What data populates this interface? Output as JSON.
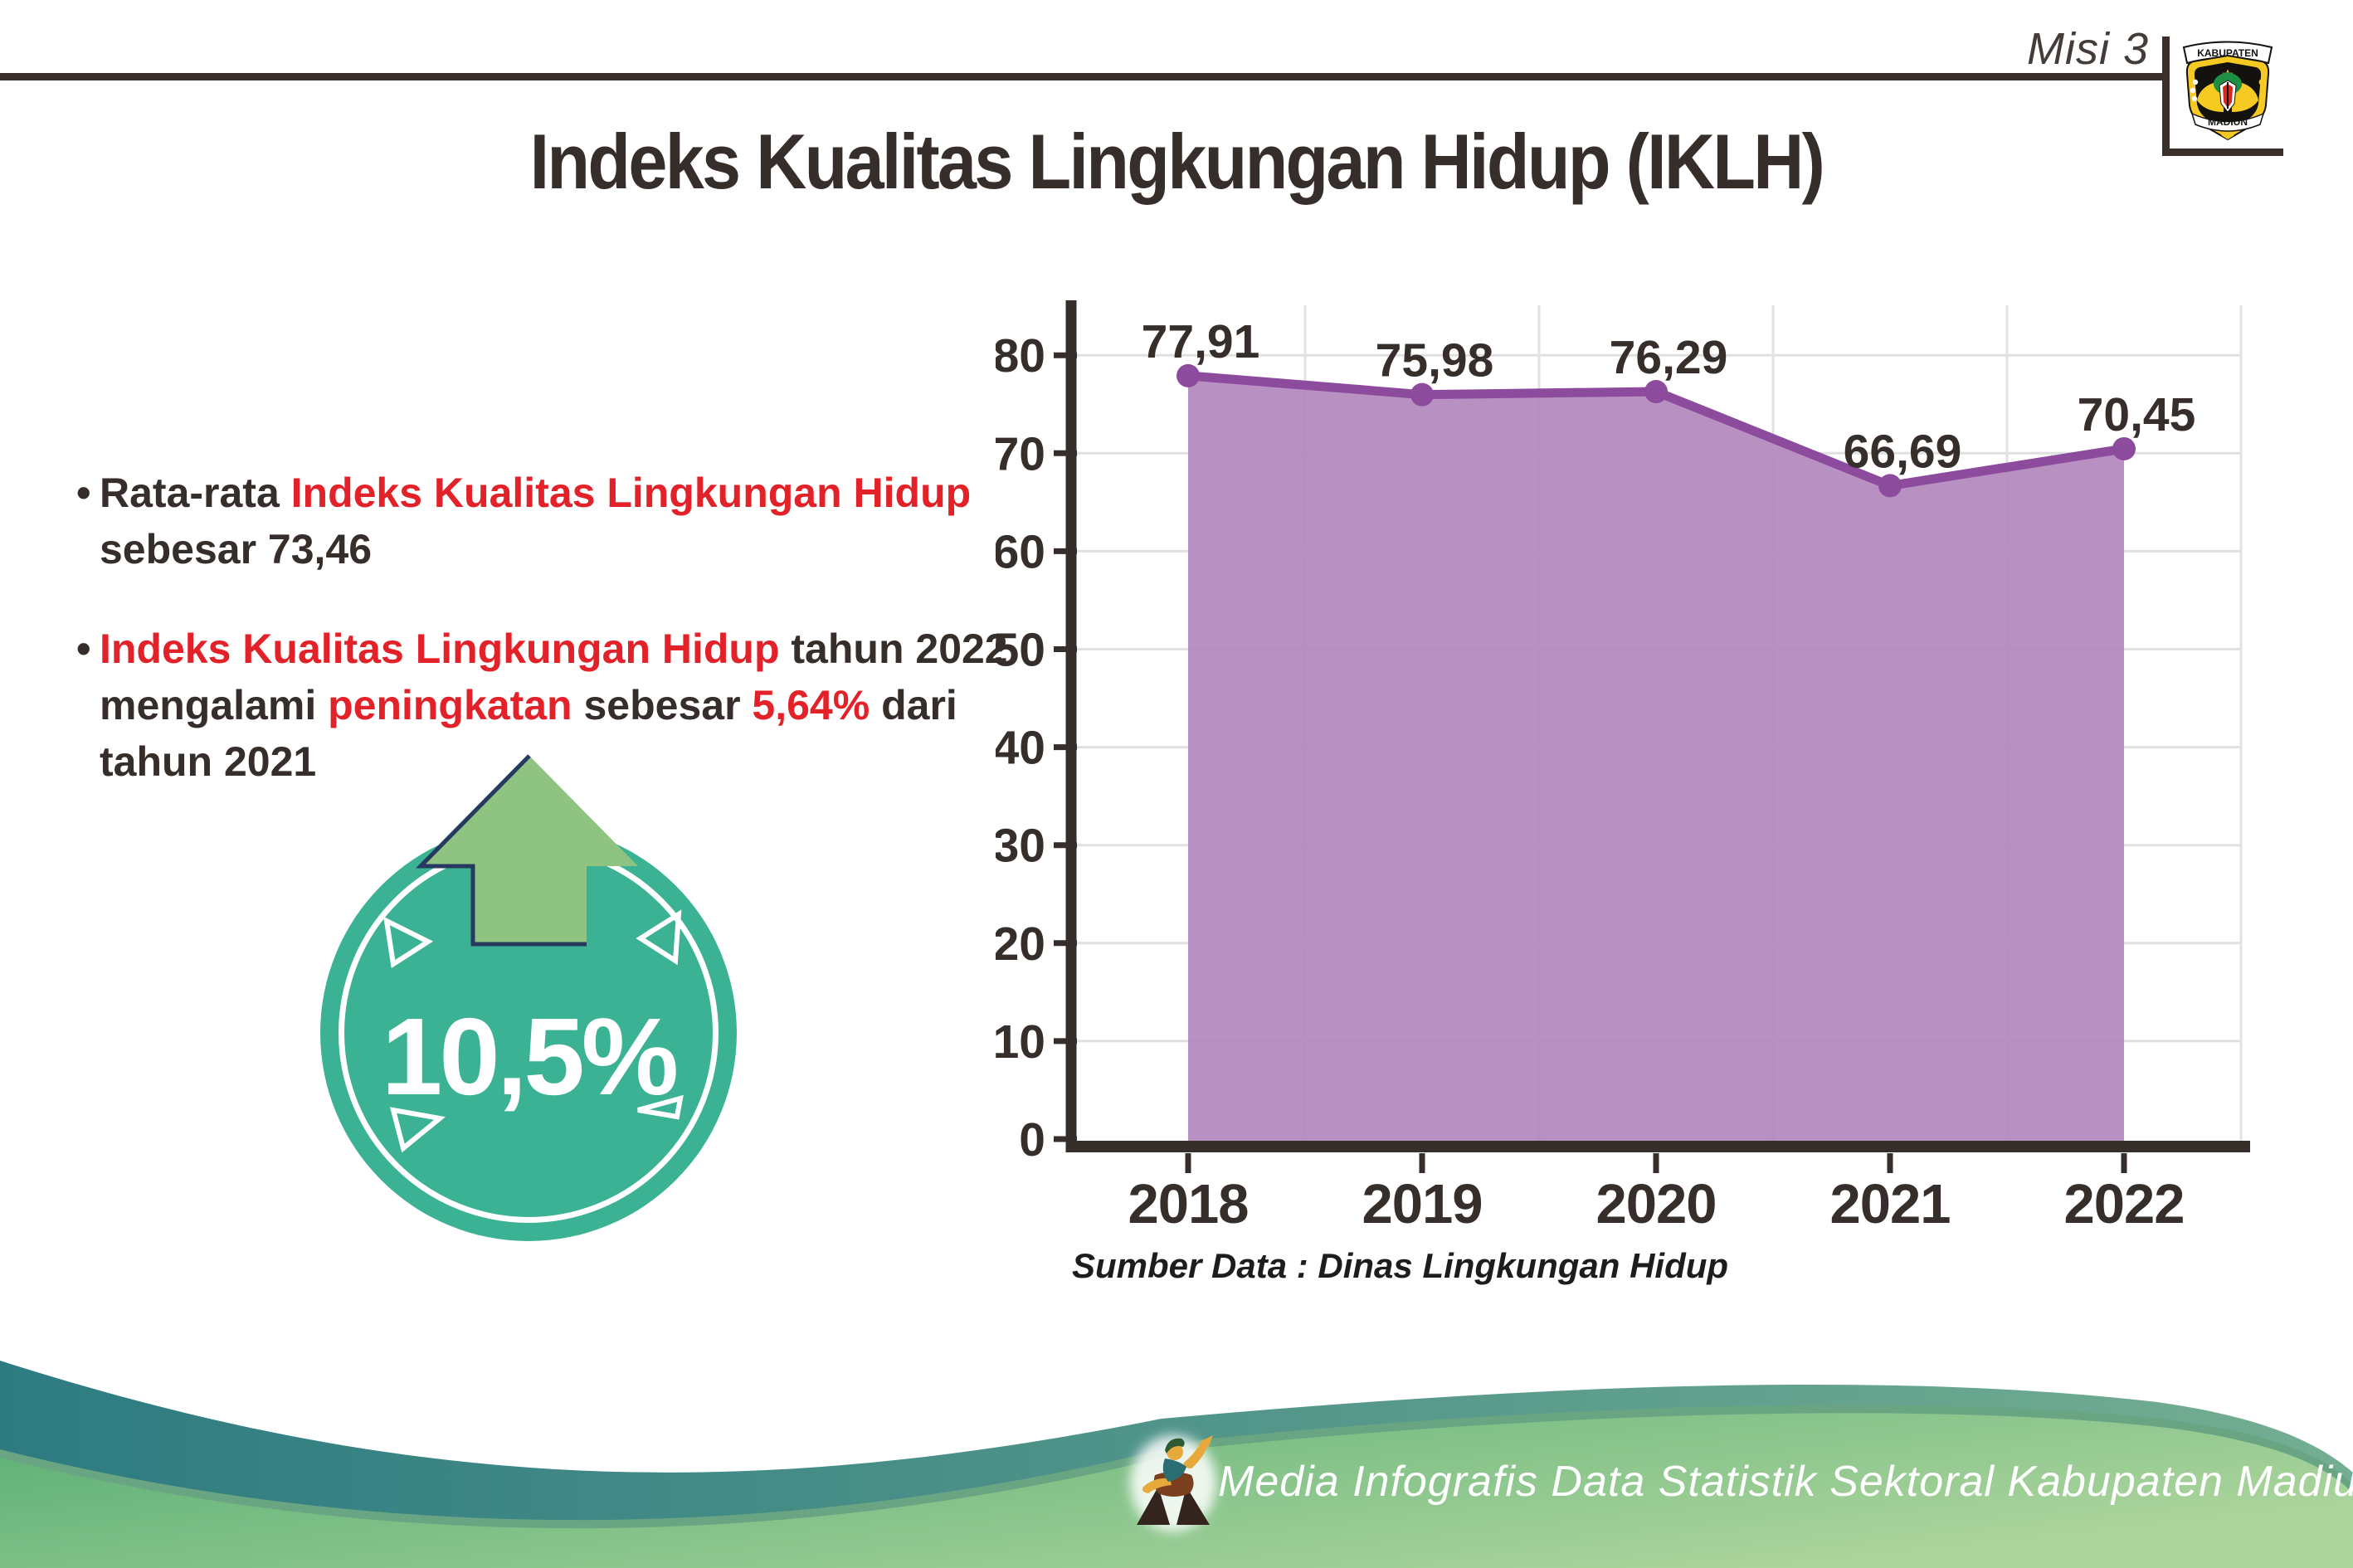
{
  "header": {
    "misi_label": "Misi 3",
    "title": "Indeks Kualitas Lingkungan Hidup (IKLH)",
    "logo": {
      "ribbon_text": "KABUPATEN",
      "band_text": "MADIUN"
    }
  },
  "bullet_marker": "•",
  "bullets": [
    {
      "lines": [
        [
          {
            "t": "Rata-rata ",
            "c": "dark"
          },
          {
            "t": "Indeks Kualitas Lingkungan Hidup",
            "c": "red"
          }
        ],
        [
          {
            "t": "sebesar 73,46",
            "c": "dark"
          }
        ]
      ]
    },
    {
      "lines": [
        [
          {
            "t": "Indeks Kualitas Lingkungan Hidup",
            "c": "red"
          },
          {
            "t": " tahun 2022",
            "c": "dark"
          }
        ],
        [
          {
            "t": "mengalami ",
            "c": "dark"
          },
          {
            "t": "peningkatan",
            "c": "red"
          },
          {
            "t": " sebesar ",
            "c": "dark"
          },
          {
            "t": "5,64%",
            "c": "red"
          },
          {
            "t": " dari",
            "c": "dark"
          }
        ],
        [
          {
            "t": "tahun 2021",
            "c": "dark"
          }
        ]
      ]
    }
  ],
  "badge": {
    "value_label": "10,5%"
  },
  "chart_data": {
    "type": "area",
    "categories": [
      "2018",
      "2019",
      "2020",
      "2021",
      "2022"
    ],
    "values": [
      77.91,
      75.98,
      76.29,
      66.69,
      70.45
    ],
    "value_labels": [
      "77,91",
      "75,98",
      "76,29",
      "66,69",
      "70,45"
    ],
    "title": "",
    "xlabel": "",
    "ylabel": "",
    "ylim": [
      0,
      85
    ],
    "yticks": [
      0,
      10,
      20,
      30,
      40,
      50,
      60,
      70,
      80
    ],
    "grid": true,
    "legend_position": "none",
    "line_color": "#8d4b9d",
    "fill_color": "#b287bd",
    "marker_color": "#8d4b9d",
    "source_note": "Sumber Data : Dinas Lingkungan Hidup"
  },
  "footer": {
    "credit_text": "Media Infografis Data Statistik Sektoral Kabupaten Madiun |"
  },
  "colors": {
    "dark_text": "#362e2b",
    "red_text": "#e22128",
    "badge_teal": "#3cb295",
    "arrow_green": "#8fc381",
    "arrow_outline": "#253a5e",
    "grid_line": "#e0e0e0",
    "wave_teal_start": "#2d7b81",
    "wave_teal_end": "#74ae92",
    "wave_green_start": "#57ae74",
    "wave_green_end": "#abd49c",
    "wave_green_edge": "#69a583"
  }
}
